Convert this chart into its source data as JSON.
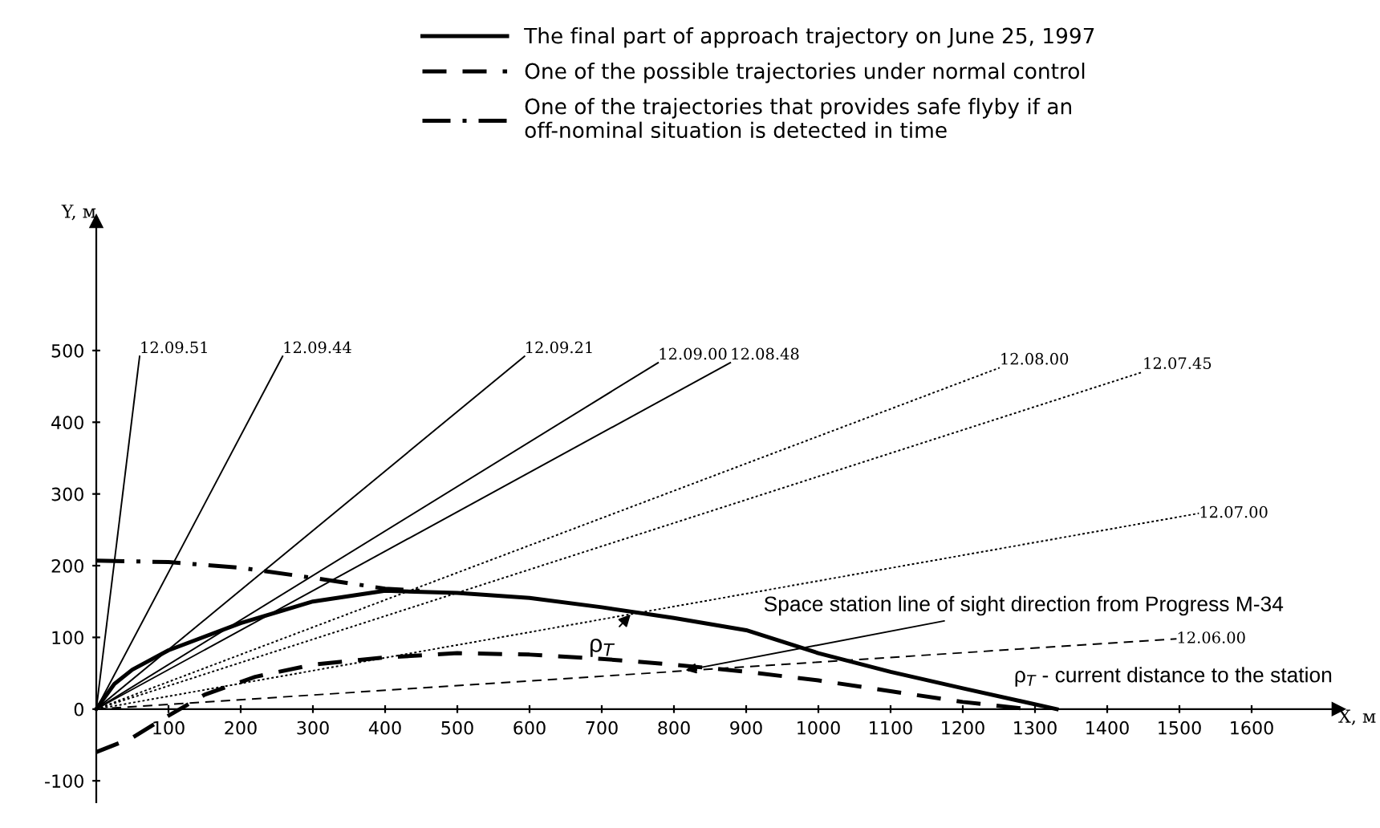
{
  "chart_data": {
    "type": "line",
    "xlabel": "X, м",
    "ylabel": "Y, м",
    "xlim": [
      0,
      1720
    ],
    "ylim": [
      -130,
      680
    ],
    "xticks": [
      100,
      200,
      300,
      400,
      500,
      600,
      700,
      800,
      900,
      1000,
      1100,
      1200,
      1300,
      1400,
      1500,
      1600
    ],
    "yticks": [
      -100,
      0,
      100,
      200,
      300,
      400,
      500
    ],
    "grid": false,
    "legend": "top",
    "marker": "none",
    "series": [
      {
        "name": "The final part of approach trajectory on June 25, 1997",
        "color": "#000000",
        "line_style": "solid",
        "x": [
          0,
          25,
          50,
          100,
          200,
          300,
          400,
          500,
          600,
          700,
          800,
          900,
          1000,
          1100,
          1200,
          1330
        ],
        "values": [
          0,
          35,
          55,
          82,
          120,
          150,
          165,
          162,
          155,
          142,
          127,
          110,
          78,
          52,
          29,
          0
        ]
      },
      {
        "name": "One of the possible trajectories under normal control",
        "color": "#000000",
        "line_style": "dashed",
        "x": [
          0,
          50,
          90,
          150,
          220,
          300,
          400,
          500,
          600,
          700,
          800,
          900,
          1000,
          1100,
          1200,
          1290
        ],
        "values": [
          -60,
          -40,
          -15,
          20,
          45,
          62,
          72,
          78,
          76,
          70,
          62,
          52,
          40,
          25,
          10,
          0
        ]
      },
      {
        "name": "One of the trajectories that provides safe flyby if an\noff-nominal situation is detected in time",
        "color": "#000000",
        "line_style": "dashdot",
        "x": [
          0,
          100,
          200,
          300,
          400,
          450
        ],
        "values": [
          207,
          205,
          197,
          183,
          168,
          165
        ]
      },
      {
        "color": "#000000",
        "line_style": "solid",
        "x": [
          0,
          60
        ],
        "values": [
          0,
          492
        ]
      },
      {
        "color": "#000000",
        "line_style": "solid",
        "x": [
          0,
          258
        ],
        "values": [
          0,
          492
        ]
      },
      {
        "color": "#000000",
        "line_style": "solid",
        "x": [
          0,
          593
        ],
        "values": [
          0,
          492
        ]
      },
      {
        "color": "#000000",
        "line_style": "solid",
        "x": [
          0,
          778
        ],
        "values": [
          0,
          483
        ]
      },
      {
        "color": "#000000",
        "line_style": "solid",
        "x": [
          0,
          878
        ],
        "values": [
          0,
          483
        ]
      },
      {
        "color": "#000000",
        "line_style": "dotted",
        "x": [
          0,
          1251
        ],
        "values": [
          0,
          476
        ]
      },
      {
        "color": "#000000",
        "line_style": "dotted",
        "x": [
          0,
          1449
        ],
        "values": [
          0,
          470
        ]
      },
      {
        "color": "#000000",
        "line_style": "dotted",
        "x": [
          0,
          1527
        ],
        "values": [
          0,
          273
        ]
      },
      {
        "color": "#000000",
        "line_style": "dashed",
        "x": [
          0,
          1496
        ],
        "values": [
          0,
          98
        ]
      }
    ],
    "annotations": [
      {
        "text": "12.09.51",
        "x": 60,
        "y": 492
      },
      {
        "text": "12.09.44",
        "x": 258,
        "y": 492
      },
      {
        "text": "12.09.21",
        "x": 593,
        "y": 492
      },
      {
        "text": "12.09.00",
        "x": 778,
        "y": 483
      },
      {
        "text": "12.08.48",
        "x": 878,
        "y": 483
      },
      {
        "text": "12.08.00",
        "x": 1251,
        "y": 476
      },
      {
        "text": "12.07.45",
        "x": 1449,
        "y": 470
      },
      {
        "text": "12.07.00",
        "x": 1527,
        "y": 273
      },
      {
        "text": "12.06.00",
        "x": 1496,
        "y": 98
      },
      {
        "text": "ρ$_{T}$",
        "x": 740,
        "y": 132
      },
      {
        "text": "Space station line of sight direction from Progress M-34",
        "x": 816,
        "y": 54
      },
      "ρ$_{T}$ - current distance to the station"
    ]
  }
}
